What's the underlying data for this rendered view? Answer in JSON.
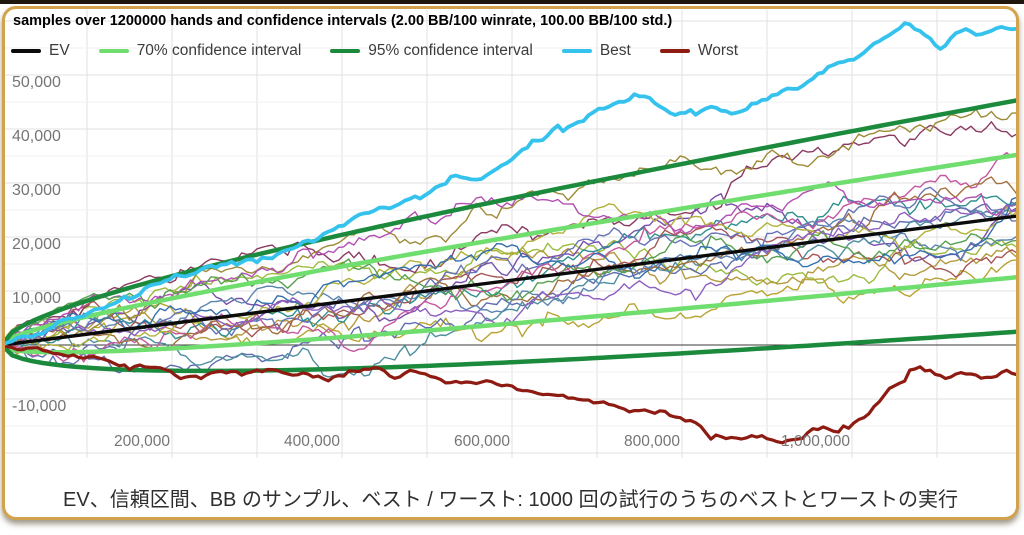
{
  "page": {
    "background": "#ffffff",
    "top_strip_color": "#1e150d",
    "frame_border_color": "#d2a24c"
  },
  "chart_data": {
    "type": "line",
    "title": "samples over 1200000 hands and confidence intervals (2.00 BB/100 winrate, 100.00 BB/100 std.)",
    "params": {
      "winrate_bb_per_100": 2.0,
      "std_bb_per_100": 100.0,
      "hands": 1200000,
      "trials": 1000
    },
    "legend": [
      {
        "label": "EV",
        "color": "#0b0b0b",
        "width": 3.4
      },
      {
        "label": "70% confidence interval",
        "color": "#6fde6f",
        "width": 4.5
      },
      {
        "label": "95% confidence interval",
        "color": "#1b8a3c",
        "width": 4.5
      },
      {
        "label": "Best",
        "color": "#35c3ee",
        "width": 3.8
      },
      {
        "label": "Worst",
        "color": "#8e1b12",
        "width": 3.2
      }
    ],
    "x_axis": {
      "min": 0,
      "max": 1200000,
      "gridline_step": 100000,
      "ticks": [
        {
          "value": 200000,
          "label": "200,000"
        },
        {
          "value": 400000,
          "label": "400,000"
        },
        {
          "value": 600000,
          "label": "600,000"
        },
        {
          "value": 800000,
          "label": "800,000"
        },
        {
          "value": 1000000,
          "label": "1,000,000"
        }
      ]
    },
    "y_axis": {
      "min": -20000,
      "max": 60000,
      "minor_step": 5000,
      "major_step": 10000,
      "zero_line": true,
      "ticks": [
        {
          "value": 50000,
          "label": "50,000"
        },
        {
          "value": 40000,
          "label": "40,000"
        },
        {
          "value": 30000,
          "label": "30,000"
        },
        {
          "value": 20000,
          "label": "20,000"
        },
        {
          "value": 10000,
          "label": "10,000"
        },
        {
          "value": -10000,
          "label": "-10,000"
        }
      ]
    },
    "ev_line": {
      "start": [
        0,
        0
      ],
      "end": [
        1200000,
        24000
      ]
    },
    "ci70": {
      "z": 1.036,
      "upper_at_end": 35350,
      "lower_at_end": 12650
    },
    "ci95": {
      "z": 1.96,
      "upper_at_end": 45470,
      "lower_at_end": 2530
    },
    "best": {
      "final": 58300,
      "peak": 59800,
      "keypoints": [
        [
          0,
          0
        ],
        [
          60000,
          3500
        ],
        [
          120000,
          7500
        ],
        [
          180000,
          11000
        ],
        [
          234000,
          13900
        ],
        [
          290000,
          16000
        ],
        [
          352000,
          18500
        ],
        [
          420000,
          23500
        ],
        [
          493000,
          27800
        ],
        [
          530000,
          31500
        ],
        [
          560000,
          31000
        ],
        [
          600000,
          34500
        ],
        [
          658000,
          39800
        ],
        [
          700000,
          43500
        ],
        [
          752000,
          46300
        ],
        [
          790000,
          42800
        ],
        [
          830000,
          44500
        ],
        [
          870000,
          43800
        ],
        [
          900000,
          45500
        ],
        [
          940000,
          49500
        ],
        [
          999000,
          53500
        ],
        [
          1030000,
          56500
        ],
        [
          1063000,
          59800
        ],
        [
          1090000,
          57000
        ],
        [
          1105000,
          55600
        ],
        [
          1130000,
          58200
        ],
        [
          1155000,
          57400
        ],
        [
          1175000,
          58800
        ],
        [
          1200000,
          58300
        ]
      ]
    },
    "worst": {
      "final": -5800,
      "min": -18000,
      "keypoints": [
        [
          0,
          0
        ],
        [
          40000,
          -1200
        ],
        [
          90000,
          -2600
        ],
        [
          150000,
          -3800
        ],
        [
          210000,
          -5200
        ],
        [
          260000,
          -4300
        ],
        [
          320000,
          -5200
        ],
        [
          380000,
          -5900
        ],
        [
          430000,
          -4900
        ],
        [
          480000,
          -5600
        ],
        [
          540000,
          -6600
        ],
        [
          600000,
          -7600
        ],
        [
          650000,
          -9000
        ],
        [
          704000,
          -10700
        ],
        [
          750000,
          -12200
        ],
        [
          800000,
          -13300
        ],
        [
          835000,
          -16300
        ],
        [
          880000,
          -16900
        ],
        [
          922000,
          -18000
        ],
        [
          955000,
          -16200
        ],
        [
          985000,
          -15600
        ],
        [
          1010000,
          -13200
        ],
        [
          1040000,
          -8800
        ],
        [
          1070000,
          -5400
        ],
        [
          1090000,
          -4700
        ],
        [
          1110000,
          -6300
        ],
        [
          1135000,
          -5000
        ],
        [
          1160000,
          -6600
        ],
        [
          1180000,
          -5100
        ],
        [
          1200000,
          -5800
        ]
      ]
    },
    "samples": {
      "count": 19,
      "colors": [
        "#9bbb3c",
        "#b8a432",
        "#8c3a62",
        "#5f6cb0",
        "#b49a3e",
        "#7a4fae",
        "#2f8f8f",
        "#a85555",
        "#6673b8",
        "#4d8fa0",
        "#c4579e",
        "#9c8b36",
        "#a3703d",
        "#5b84b0",
        "#b0b23a",
        "#b24fb2",
        "#57a04f",
        "#356fae",
        "#8f5fc0"
      ]
    },
    "grid": {
      "minor_color": "#f1f1f1",
      "major_color": "#e0e0e0",
      "zero_color": "#3a3a3a"
    }
  },
  "caption": {
    "text": "EV、信頼区間、BB のサンプル、ベスト / ワースト: 1000 回の試行のうちのベストとワーストの実行"
  }
}
